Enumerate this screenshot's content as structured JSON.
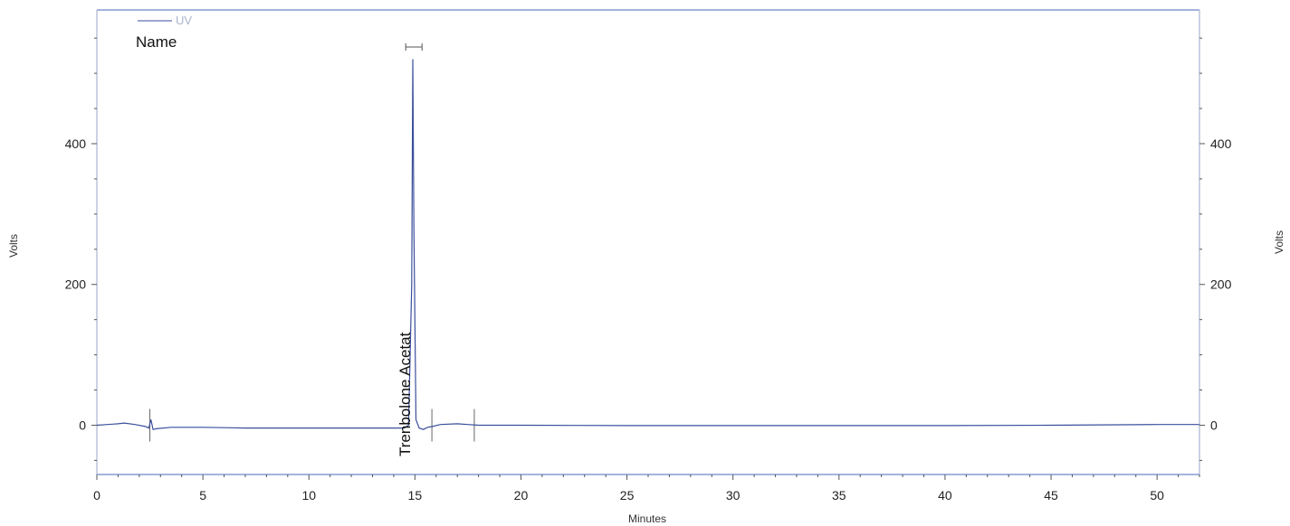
{
  "chart_data": {
    "type": "line",
    "xlabel": "Minutes",
    "ylabel": "Volts",
    "ylabel_right": "Volts",
    "xlim": [
      0,
      52
    ],
    "ylim": [
      -70,
      590
    ],
    "x_ticks": [
      0,
      5,
      10,
      15,
      20,
      25,
      30,
      35,
      40,
      45,
      50
    ],
    "y_ticks": [
      0,
      200,
      400
    ],
    "legend": {
      "series_label": "UV",
      "header": "Name",
      "placement": "top-left"
    },
    "series": [
      {
        "name": "UV",
        "color": "#3a4f9c",
        "x": [
          0,
          0.5,
          1.0,
          1.3,
          1.8,
          2.3,
          2.45,
          2.55,
          2.65,
          2.8,
          3.5,
          5,
          7,
          10,
          12,
          13.5,
          14.5,
          14.7,
          14.85,
          14.9,
          14.95,
          15.05,
          15.2,
          15.4,
          15.6,
          15.8,
          16.2,
          17,
          17.5,
          18,
          20,
          25,
          30,
          35,
          40,
          45,
          50,
          52
        ],
        "y": [
          0,
          1,
          2,
          3,
          1,
          -2,
          -4,
          8,
          -6,
          -5,
          -3,
          -3,
          -4,
          -4,
          -4,
          -4,
          -4,
          0,
          200,
          520,
          280,
          8,
          -4,
          -6,
          -3,
          -2,
          1,
          2,
          1,
          0,
          0,
          -0.5,
          -0.5,
          -0.5,
          -0.5,
          0,
          1,
          1
        ]
      }
    ],
    "peaks": [
      {
        "name": "Trenbolone Acetat",
        "rt": 14.95
      }
    ],
    "baseline_marks": [
      2.5,
      15.8,
      17.8
    ]
  }
}
